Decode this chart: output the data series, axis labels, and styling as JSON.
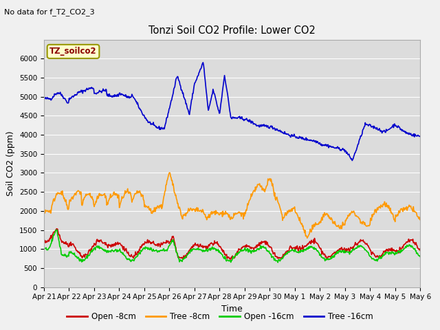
{
  "title": "Tonzi Soil CO2 Profile: Lower CO2",
  "subtitle": "No data for f_T2_CO2_3",
  "xlabel": "Time",
  "ylabel": "Soil CO2 (ppm)",
  "legend_label": "TZ_soilco2",
  "ylim": [
    0,
    6500
  ],
  "yticks": [
    0,
    500,
    1000,
    1500,
    2000,
    2500,
    3000,
    3500,
    4000,
    4500,
    5000,
    5500,
    6000
  ],
  "bg_color": "#dcdcdc",
  "colors": {
    "open_8cm": "#cc0000",
    "tree_8cm": "#ff9900",
    "open_16cm": "#00cc00",
    "tree_16cm": "#0000cc"
  },
  "line_width": 1.2,
  "n_points": 720,
  "x_start": 0,
  "x_end": 15,
  "xtick_positions": [
    0,
    1,
    2,
    3,
    4,
    5,
    6,
    7,
    8,
    9,
    10,
    11,
    12,
    13,
    14,
    15
  ],
  "xtick_labels": [
    "Apr 21",
    "Apr 22",
    "Apr 23",
    "Apr 24",
    "Apr 25",
    "Apr 26",
    "Apr 27",
    "Apr 28",
    "Apr 29",
    "Apr 30",
    "May 1",
    "May 2",
    "May 3",
    "May 4",
    "May 5",
    "May 6"
  ]
}
